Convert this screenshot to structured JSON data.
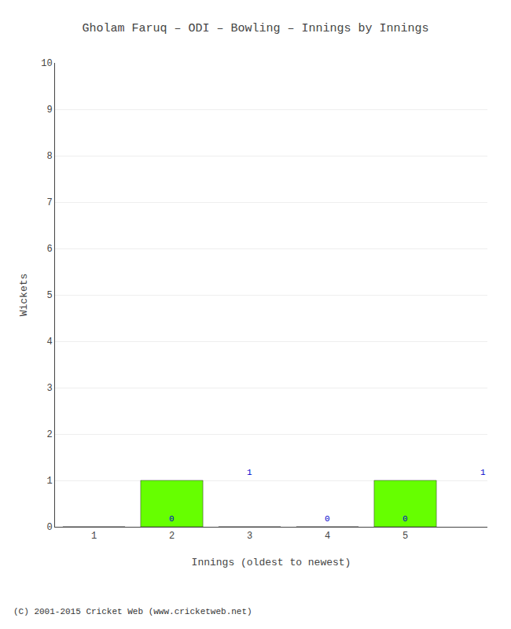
{
  "chart_data": {
    "type": "bar",
    "title": "Gholam Faruq – ODI – Bowling – Innings by Innings",
    "x_label": "Innings (oldest to newest)",
    "y_label": "Wickets",
    "categories": [
      1,
      2,
      3,
      4,
      5
    ],
    "values": [
      0,
      1,
      0,
      0,
      1
    ],
    "color": "#66ff00",
    "ylim": [
      0,
      10
    ],
    "yticks": [
      0,
      1,
      2,
      3,
      4,
      5,
      6,
      7,
      8,
      9,
      10
    ],
    "grid": true,
    "data_labels": true,
    "annotations": [
      "(C) 2001-2015 Cricket Web (www.cricketweb.net)"
    ]
  }
}
